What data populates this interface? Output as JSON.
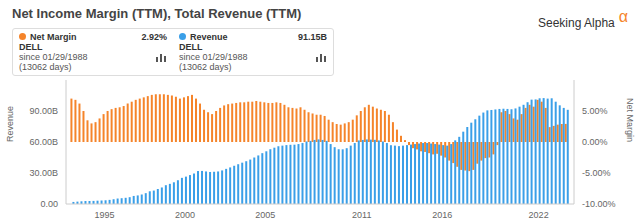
{
  "header": {
    "title": "Net Income Margin (TTM), Total Revenue (TTM)",
    "brand": "Seeking Alpha",
    "brand_mark": "α"
  },
  "chart_data": {
    "type": "bar",
    "grid": false,
    "legend_boxes": [
      {
        "series": "Net Margin",
        "latest": {
          "value": 2.92,
          "label": "2.92%"
        },
        "ticker": "DELL",
        "since": "since 01/29/1988",
        "days": "(13062 days)"
      },
      {
        "series": "Revenue",
        "latest": {
          "value": 91.15,
          "label": "91.15B"
        },
        "ticker": "DELL",
        "since": "since 01/29/1988",
        "days": "(13062 days)"
      }
    ],
    "y_label": "Revenue",
    "y2_label": "Net Margin",
    "xlim": [
      1992.6,
      2024.2
    ],
    "xticks": [
      1995,
      2000,
      2005,
      2011,
      2016,
      2022
    ],
    "ylim": [
      0,
      120
    ],
    "yticks": [
      {
        "value": 0,
        "label": "0.00"
      },
      {
        "value": 30,
        "label": "30.00B"
      },
      {
        "value": 60,
        "label": "60.00B"
      },
      {
        "value": 90,
        "label": "90.00B"
      }
    ],
    "y2lim": [
      -10,
      10
    ],
    "y2ticks": [
      {
        "value": -10,
        "label": "-10.00%"
      },
      {
        "value": -5,
        "label": "-5.00%"
      },
      {
        "value": 0,
        "label": "0.00%"
      },
      {
        "value": 5,
        "label": "5.00%"
      }
    ],
    "x": [
      1993,
      1993.25,
      1993.5,
      1993.75,
      1994,
      1994.25,
      1994.5,
      1994.75,
      1995,
      1995.25,
      1995.5,
      1995.75,
      1996,
      1996.25,
      1996.5,
      1996.75,
      1997,
      1997.25,
      1997.5,
      1997.75,
      1998,
      1998.25,
      1998.5,
      1998.75,
      1999,
      1999.25,
      1999.5,
      1999.75,
      2000,
      2000.25,
      2000.5,
      2000.75,
      2001,
      2001.25,
      2001.5,
      2001.75,
      2002,
      2002.25,
      2002.5,
      2002.75,
      2003,
      2003.25,
      2003.5,
      2003.75,
      2004,
      2004.25,
      2004.5,
      2004.75,
      2005,
      2005.25,
      2005.5,
      2005.75,
      2006,
      2006.25,
      2006.5,
      2006.75,
      2007,
      2007.25,
      2007.5,
      2007.75,
      2008,
      2008.25,
      2008.5,
      2008.75,
      2009,
      2009.25,
      2009.5,
      2009.75,
      2010,
      2010.25,
      2010.5,
      2010.75,
      2011,
      2011.25,
      2011.5,
      2011.75,
      2012,
      2012.25,
      2012.5,
      2012.75,
      2013,
      2013.25,
      2013.5,
      2013.75,
      2014,
      2014.25,
      2014.5,
      2014.75,
      2015,
      2015.25,
      2015.5,
      2015.75,
      2016,
      2016.25,
      2016.5,
      2016.75,
      2017,
      2017.25,
      2017.5,
      2017.75,
      2018,
      2018.25,
      2018.5,
      2018.75,
      2019,
      2019.25,
      2019.5,
      2019.75,
      2020,
      2020.25,
      2020.5,
      2020.75,
      2021,
      2021.25,
      2021.5,
      2021.75,
      2022,
      2022.25,
      2022.5,
      2022.75,
      2023,
      2023.25,
      2023.5,
      2023.75
    ],
    "series": [
      {
        "name": "Net Margin",
        "color": "#f5842a",
        "axis": "y2",
        "type": "bar",
        "values": [
          7.0,
          6.8,
          6.2,
          5.0,
          3.5,
          3.0,
          3.2,
          3.8,
          4.5,
          5.0,
          5.3,
          5.5,
          5.6,
          5.8,
          6.2,
          6.5,
          6.8,
          7.0,
          7.2,
          7.4,
          7.6,
          7.7,
          7.7,
          7.7,
          7.6,
          7.5,
          7.3,
          7.0,
          7.2,
          7.4,
          7.6,
          7.0,
          6.2,
          5.2,
          4.8,
          4.5,
          5.0,
          5.5,
          5.9,
          6.1,
          6.2,
          6.3,
          6.4,
          6.4,
          6.5,
          6.5,
          6.6,
          6.5,
          6.4,
          6.3,
          6.3,
          6.4,
          6.3,
          6.0,
          5.6,
          5.5,
          5.4,
          5.6,
          5.2,
          4.8,
          4.6,
          4.4,
          4.4,
          4.2,
          3.6,
          3.2,
          2.9,
          2.8,
          3.0,
          3.2,
          3.6,
          4.3,
          5.0,
          5.6,
          6.0,
          5.7,
          5.4,
          5.2,
          5.0,
          4.4,
          3.2,
          2.0,
          1.0,
          0.3,
          -0.5,
          -1.0,
          -1.2,
          -1.5,
          -1.6,
          -1.8,
          -2.0,
          -1.9,
          -2.2,
          -2.5,
          -3.0,
          -3.4,
          -4.0,
          -4.5,
          -4.6,
          -4.7,
          -4.5,
          -3.5,
          -3.0,
          -2.6,
          -2.5,
          -2.0,
          -0.5,
          4.8,
          5.0,
          4.5,
          3.8,
          3.6,
          4.5,
          5.5,
          6.0,
          5.7,
          6.8,
          6.5,
          5.5,
          2.4,
          2.6,
          2.8,
          2.9,
          2.92
        ]
      },
      {
        "name": "Revenue",
        "color": "#3a9fe8",
        "axis": "y",
        "type": "bar",
        "values": [
          2.0,
          2.3,
          2.6,
          2.87,
          2.9,
          3.0,
          3.2,
          3.4,
          3.6,
          4.0,
          4.6,
          5.3,
          5.6,
          6.0,
          6.6,
          7.8,
          8.3,
          9.2,
          10.5,
          12.3,
          13.0,
          14.5,
          16.0,
          18.2,
          19.5,
          21.0,
          23.0,
          25.3,
          26.5,
          28.0,
          29.5,
          31.9,
          32.0,
          31.5,
          31.0,
          31.2,
          31.5,
          32.5,
          34.0,
          35.4,
          37.0,
          38.5,
          40.0,
          41.4,
          43.0,
          45.0,
          47.0,
          49.2,
          51.0,
          53.0,
          54.5,
          55.9,
          56.5,
          57.0,
          57.3,
          57.4,
          58.0,
          59.0,
          60.5,
          61.1,
          62.0,
          62.5,
          62.0,
          61.1,
          58.0,
          55.0,
          53.0,
          52.9,
          54.0,
          56.5,
          59.0,
          61.5,
          62.0,
          62.5,
          62.3,
          62.1,
          61.5,
          60.5,
          59.0,
          56.9,
          56.5,
          56.0,
          56.5,
          57.0,
          57.5,
          58.0,
          58.5,
          59.0,
          59.0,
          58.5,
          58.0,
          57.5,
          57.0,
          56.5,
          58.0,
          61.6,
          65.0,
          70.0,
          74.5,
          78.7,
          82.0,
          85.5,
          88.5,
          90.6,
          91.0,
          91.5,
          92.0,
          92.2,
          92.0,
          91.8,
          92.5,
          94.2,
          96.0,
          98.5,
          101.0,
          101.2,
          102.3,
          102.5,
          102.0,
          102.3,
          99.0,
          95.5,
          93.0,
          91.15
        ]
      }
    ]
  }
}
